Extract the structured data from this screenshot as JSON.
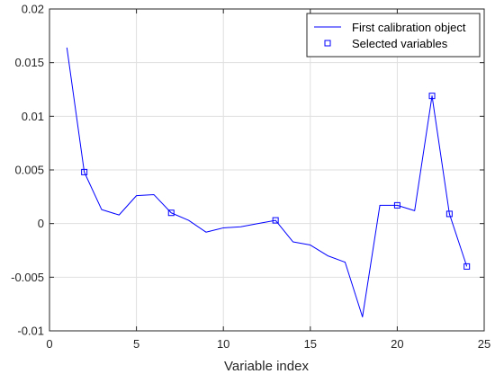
{
  "chart_data": {
    "type": "line",
    "title": "",
    "xlabel": "Variable index",
    "ylabel": "",
    "xlim": [
      0,
      25
    ],
    "ylim": [
      -0.01,
      0.02
    ],
    "xticks": [
      0,
      5,
      10,
      15,
      20,
      25
    ],
    "xtick_labels": [
      "0",
      "5",
      "10",
      "15",
      "20",
      "25"
    ],
    "yticks": [
      -0.01,
      -0.005,
      0,
      0.005,
      0.01,
      0.015,
      0.02
    ],
    "ytick_labels": [
      "-0.01",
      "-0.005",
      "0",
      "0.005",
      "0.01",
      "0.015",
      "0.02"
    ],
    "grid": true,
    "legend_position": "top-right",
    "series": [
      {
        "name": "First calibration object",
        "style": "line",
        "color": "#0000ff",
        "x": [
          1,
          2,
          3,
          4,
          5,
          6,
          7,
          8,
          9,
          10,
          11,
          12,
          13,
          14,
          15,
          16,
          17,
          18,
          19,
          20,
          21,
          22,
          23,
          24
        ],
        "y": [
          0.0164,
          0.0048,
          0.0013,
          0.0008,
          0.0026,
          0.0027,
          0.001,
          0.0003,
          -0.0008,
          -0.0004,
          -0.0003,
          0.0,
          0.0003,
          -0.0017,
          -0.002,
          -0.003,
          -0.0036,
          -0.0087,
          0.0017,
          0.0017,
          0.0012,
          0.0119,
          0.0009,
          -0.004
        ]
      },
      {
        "name": "Selected variables",
        "style": "marker",
        "marker": "square",
        "color": "#0000ff",
        "x": [
          2,
          7,
          13,
          20,
          22,
          23,
          24
        ],
        "y": [
          0.0048,
          0.001,
          0.0003,
          0.0017,
          0.0119,
          0.0009,
          -0.004
        ]
      }
    ]
  }
}
